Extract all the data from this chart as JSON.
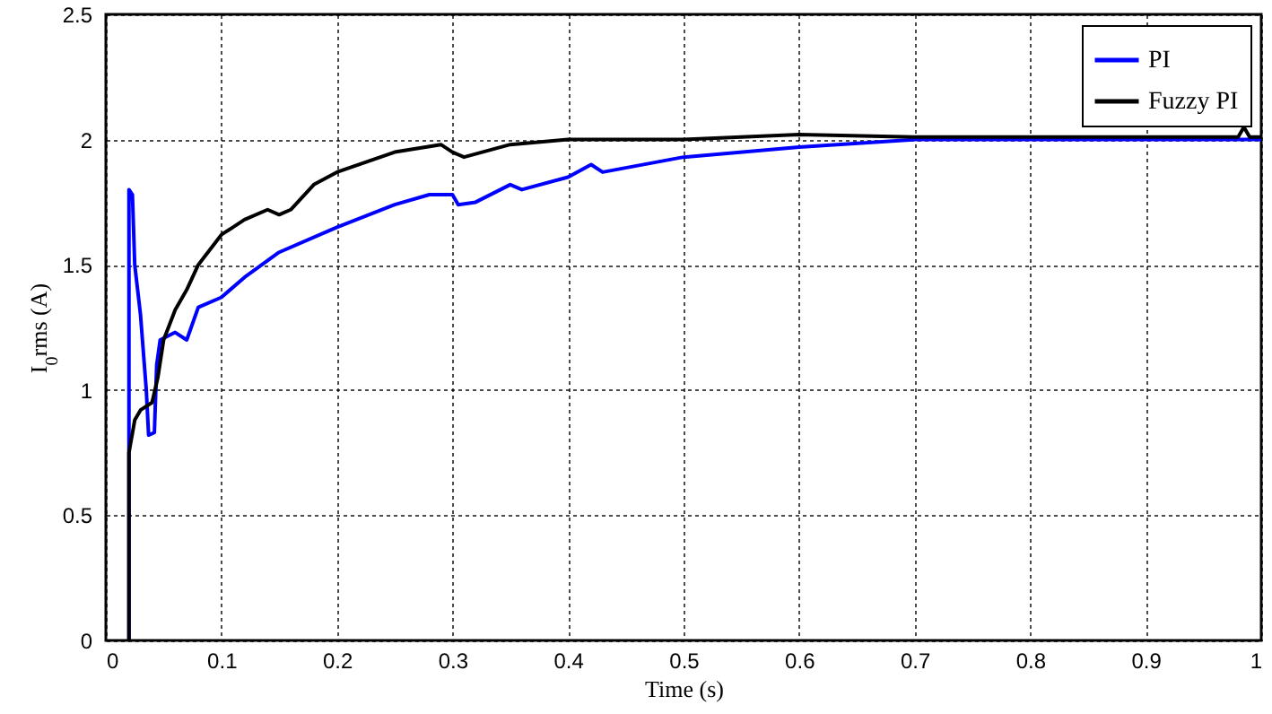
{
  "chart_data": {
    "type": "line",
    "xlabel": "Time (s)",
    "ylabel": "I$_{0}$rms (A)",
    "xlim": [
      0,
      1
    ],
    "xticks": [
      0,
      0.1,
      0.2,
      0.3,
      0.4,
      0.5,
      0.6,
      0.7,
      0.8,
      0.9,
      1
    ],
    "ylim": [
      0,
      2.5
    ],
    "yticks": [
      0,
      0.5,
      1,
      1.5,
      2,
      2.5
    ],
    "grid": true,
    "legend": "top right",
    "series": [
      {
        "name": "PI",
        "color": "#0000ff",
        "x": [
          0.02,
          0.02,
          0.023,
          0.025,
          0.03,
          0.035,
          0.037,
          0.042,
          0.044,
          0.047,
          0.06,
          0.07,
          0.08,
          0.1,
          0.12,
          0.15,
          0.2,
          0.25,
          0.28,
          0.3,
          0.305,
          0.32,
          0.35,
          0.36,
          0.4,
          0.42,
          0.43,
          0.5,
          0.6,
          0.7,
          0.8,
          1
        ],
        "values": [
          0,
          1.8,
          1.78,
          1.5,
          1.3,
          1.0,
          0.82,
          0.83,
          1.1,
          1.2,
          1.23,
          1.2,
          1.33,
          1.37,
          1.45,
          1.55,
          1.65,
          1.74,
          1.78,
          1.78,
          1.74,
          1.75,
          1.82,
          1.8,
          1.85,
          1.9,
          1.87,
          1.93,
          1.97,
          2.0,
          2.0,
          2.0
        ]
      },
      {
        "name": "Fuzzy PI",
        "color": "#000000",
        "x": [
          0.02,
          0.02,
          0.025,
          0.03,
          0.04,
          0.045,
          0.05,
          0.06,
          0.07,
          0.08,
          0.1,
          0.12,
          0.14,
          0.15,
          0.16,
          0.18,
          0.2,
          0.25,
          0.29,
          0.3,
          0.31,
          0.35,
          0.4,
          0.5,
          0.6,
          0.7,
          0.98,
          0.985,
          0.99,
          1
        ],
        "values": [
          0,
          0.75,
          0.88,
          0.92,
          0.95,
          1.05,
          1.2,
          1.32,
          1.4,
          1.5,
          1.62,
          1.68,
          1.72,
          1.7,
          1.72,
          1.82,
          1.87,
          1.95,
          1.98,
          1.95,
          1.93,
          1.98,
          2.0,
          2.0,
          2.02,
          2.01,
          2.01,
          2.05,
          2.01,
          2.01
        ]
      }
    ]
  }
}
